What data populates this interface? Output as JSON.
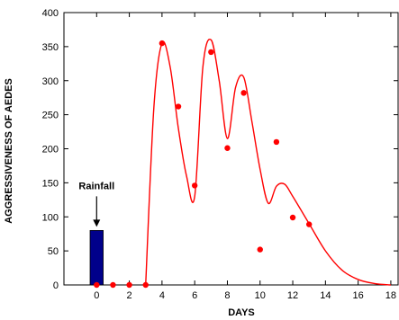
{
  "chart_data": {
    "type": "scatter",
    "title": "",
    "xlabel": "DAYS",
    "ylabel": "AGGRESSIVENESS OF AEDES",
    "xlim": [
      -2,
      18.5
    ],
    "ylim": [
      0,
      400
    ],
    "x_ticks": [
      0,
      2,
      4,
      6,
      8,
      10,
      12,
      14,
      16,
      18
    ],
    "y_ticks": [
      0,
      50,
      100,
      150,
      200,
      250,
      300,
      350,
      400
    ],
    "grid": false,
    "legend": "none",
    "rainfall_bar": {
      "label": "Rainfall",
      "x_from": -0.4,
      "x_to": 0.4,
      "value": 80,
      "color": "#00008b"
    },
    "observed_points": {
      "color": "#ff0000",
      "x": [
        0,
        1,
        2,
        3,
        4,
        5,
        6,
        7,
        8,
        9,
        10,
        11,
        12,
        13
      ],
      "y": [
        0,
        0,
        0,
        0,
        355,
        262,
        146,
        342,
        201,
        282,
        52,
        210,
        99,
        89
      ]
    },
    "model_curve": {
      "color": "#ff0000",
      "x": [
        3,
        3.5,
        4,
        4.5,
        5,
        5.5,
        6,
        6.5,
        7,
        7.5,
        8,
        8.5,
        9,
        9.5,
        10,
        10.5,
        11,
        11.5,
        12,
        13,
        14,
        15,
        16,
        17,
        18
      ],
      "y": [
        0,
        260,
        355,
        320,
        230,
        160,
        130,
        320,
        360,
        300,
        215,
        290,
        305,
        240,
        170,
        120,
        145,
        148,
        130,
        90,
        50,
        22,
        8,
        2,
        0
      ]
    }
  }
}
